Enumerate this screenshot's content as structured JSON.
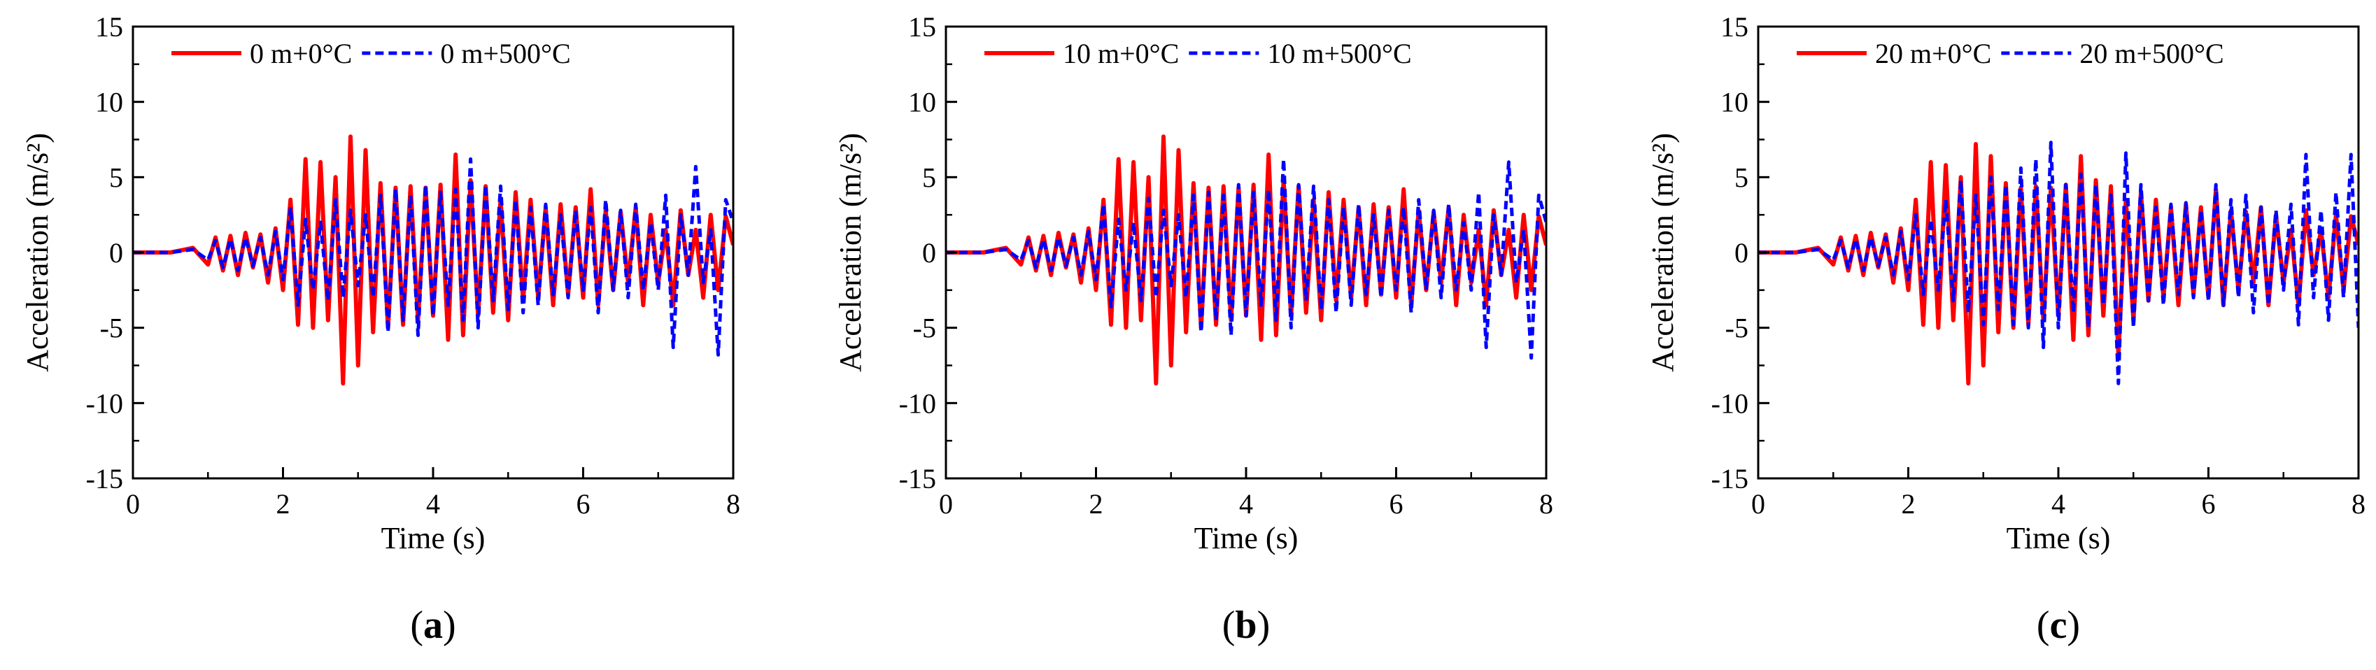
{
  "colors": {
    "series_0C": "#ff0000",
    "series_500C": "#0000ff",
    "axis": "#000000"
  },
  "chart_data": [
    {
      "type": "line",
      "panel_label": "(a)",
      "xlabel": "Time (s)",
      "ylabel": "Acceleration (m/s²)",
      "xlim": [
        0,
        8
      ],
      "ylim": [
        -15,
        15
      ],
      "xticks": [
        0,
        2,
        4,
        6,
        8
      ],
      "yticks": [
        -15,
        -10,
        -5,
        0,
        5,
        10,
        15
      ],
      "legend_position": "top",
      "series": [
        {
          "name": "0 m+0°C",
          "color": "#ff0000",
          "style": "solid",
          "x": [
            0,
            0.5,
            0.8,
            1.0,
            1.1,
            1.2,
            1.3,
            1.4,
            1.5,
            1.6,
            1.7,
            1.8,
            1.9,
            2.0,
            2.1,
            2.2,
            2.3,
            2.4,
            2.5,
            2.6,
            2.7,
            2.8,
            2.9,
            3.0,
            3.1,
            3.2,
            3.3,
            3.4,
            3.5,
            3.6,
            3.7,
            3.8,
            3.9,
            4.0,
            4.1,
            4.2,
            4.3,
            4.4,
            4.5,
            4.6,
            4.7,
            4.8,
            4.9,
            5.0,
            5.1,
            5.2,
            5.3,
            5.4,
            5.5,
            5.6,
            5.7,
            5.8,
            5.9,
            6.0,
            6.1,
            6.2,
            6.3,
            6.4,
            6.5,
            6.6,
            6.7,
            6.8,
            6.9,
            7.0,
            7.1,
            7.2,
            7.3,
            7.4,
            7.5,
            7.6,
            7.7,
            7.8,
            7.9,
            8.0
          ],
          "y": [
            0,
            0,
            0.3,
            -0.8,
            1.0,
            -1.2,
            1.1,
            -1.5,
            1.3,
            -1.0,
            1.2,
            -2.0,
            1.6,
            -2.5,
            3.5,
            -4.8,
            6.2,
            -5.0,
            6.0,
            -4.5,
            5.0,
            -8.7,
            7.7,
            -7.5,
            6.8,
            -5.3,
            4.6,
            -5.0,
            4.3,
            -4.8,
            4.4,
            -4.5,
            4.3,
            -4.2,
            4.5,
            -5.8,
            6.5,
            -5.5,
            4.8,
            -4.2,
            4.4,
            -4.0,
            3.5,
            -4.5,
            4.0,
            -3.2,
            3.5,
            -3.0,
            3.0,
            -3.5,
            3.2,
            -2.8,
            3.0,
            -3.0,
            4.2,
            -3.5,
            2.8,
            -2.5,
            2.7,
            -2.0,
            3.0,
            -3.5,
            2.5,
            -2.0,
            1.5,
            -3.5,
            2.8,
            -1.5,
            1.5,
            -3.0,
            2.5,
            -2.5,
            2.4,
            0.5
          ]
        },
        {
          "name": "0 m+500°C",
          "color": "#0000ff",
          "style": "dashed",
          "x": [
            0,
            0.5,
            0.8,
            1.0,
            1.1,
            1.2,
            1.3,
            1.4,
            1.5,
            1.6,
            1.7,
            1.8,
            1.9,
            2.0,
            2.1,
            2.2,
            2.3,
            2.4,
            2.5,
            2.6,
            2.7,
            2.8,
            2.9,
            3.0,
            3.1,
            3.2,
            3.3,
            3.4,
            3.5,
            3.6,
            3.7,
            3.8,
            3.9,
            4.0,
            4.1,
            4.2,
            4.3,
            4.4,
            4.5,
            4.6,
            4.7,
            4.8,
            4.9,
            5.0,
            5.1,
            5.2,
            5.3,
            5.4,
            5.5,
            5.6,
            5.7,
            5.8,
            5.9,
            6.0,
            6.1,
            6.2,
            6.3,
            6.4,
            6.5,
            6.6,
            6.7,
            6.8,
            6.9,
            7.0,
            7.1,
            7.2,
            7.3,
            7.4,
            7.5,
            7.6,
            7.7,
            7.8,
            7.9,
            8.0
          ],
          "y": [
            0,
            0,
            0.2,
            -0.5,
            0.8,
            -1.0,
            0.9,
            -1.2,
            1.0,
            -0.9,
            1.0,
            -1.5,
            1.4,
            -1.8,
            3.0,
            -3.5,
            2.2,
            -2.5,
            2.0,
            -3.2,
            3.5,
            -3.0,
            2.8,
            -2.2,
            2.5,
            -3.0,
            3.8,
            -5.3,
            4.2,
            -4.5,
            3.8,
            -5.5,
            4.5,
            -4.2,
            4.0,
            -3.5,
            4.2,
            -4.5,
            6.2,
            -5.0,
            4.5,
            -3.2,
            4.4,
            -3.8,
            3.5,
            -4.0,
            3.0,
            -3.5,
            3.2,
            -2.8,
            2.5,
            -3.0,
            2.8,
            -2.5,
            3.0,
            -4.0,
            3.5,
            -2.5,
            2.8,
            -3.0,
            3.2,
            -2.5,
            2.0,
            -2.5,
            3.8,
            -6.3,
            2.5,
            -1.5,
            5.7,
            -2.0,
            1.5,
            -6.8,
            3.5,
            2.0
          ]
        }
      ]
    },
    {
      "type": "line",
      "panel_label": "(b)",
      "xlabel": "Time (s)",
      "ylabel": "Acceleration (m/s²)",
      "xlim": [
        0,
        8
      ],
      "ylim": [
        -15,
        15
      ],
      "xticks": [
        0,
        2,
        4,
        6,
        8
      ],
      "yticks": [
        -15,
        -10,
        -5,
        0,
        5,
        10,
        15
      ],
      "legend_position": "top",
      "series": [
        {
          "name": "10 m+0°C",
          "color": "#ff0000",
          "style": "solid",
          "x": [
            0,
            0.5,
            0.8,
            1.0,
            1.1,
            1.2,
            1.3,
            1.4,
            1.5,
            1.6,
            1.7,
            1.8,
            1.9,
            2.0,
            2.1,
            2.2,
            2.3,
            2.4,
            2.5,
            2.6,
            2.7,
            2.8,
            2.9,
            3.0,
            3.1,
            3.2,
            3.3,
            3.4,
            3.5,
            3.6,
            3.7,
            3.8,
            3.9,
            4.0,
            4.1,
            4.2,
            4.3,
            4.4,
            4.5,
            4.6,
            4.7,
            4.8,
            4.9,
            5.0,
            5.1,
            5.2,
            5.3,
            5.4,
            5.5,
            5.6,
            5.7,
            5.8,
            5.9,
            6.0,
            6.1,
            6.2,
            6.3,
            6.4,
            6.5,
            6.6,
            6.7,
            6.8,
            6.9,
            7.0,
            7.1,
            7.2,
            7.3,
            7.4,
            7.5,
            7.6,
            7.7,
            7.8,
            7.9,
            8.0
          ],
          "y": [
            0,
            0,
            0.3,
            -0.8,
            1.0,
            -1.2,
            1.1,
            -1.5,
            1.3,
            -1.0,
            1.2,
            -2.0,
            1.6,
            -2.5,
            3.5,
            -4.8,
            6.2,
            -5.0,
            6.0,
            -4.5,
            5.0,
            -8.7,
            7.7,
            -7.5,
            6.8,
            -5.3,
            4.6,
            -5.0,
            4.3,
            -4.8,
            4.4,
            -4.5,
            4.3,
            -4.2,
            4.5,
            -5.8,
            6.5,
            -5.5,
            4.8,
            -4.2,
            4.4,
            -4.0,
            3.5,
            -4.5,
            4.0,
            -3.2,
            3.5,
            -3.0,
            3.0,
            -3.5,
            3.2,
            -2.8,
            3.0,
            -3.0,
            4.2,
            -3.5,
            2.8,
            -2.5,
            2.7,
            -2.0,
            3.0,
            -3.5,
            2.5,
            -2.0,
            1.5,
            -3.5,
            2.8,
            -1.5,
            1.5,
            -3.0,
            2.5,
            -2.5,
            2.4,
            0.5
          ]
        },
        {
          "name": "10 m+500°C",
          "color": "#0000ff",
          "style": "dashed",
          "x": [
            0,
            0.5,
            0.8,
            1.0,
            1.1,
            1.2,
            1.3,
            1.4,
            1.5,
            1.6,
            1.7,
            1.8,
            1.9,
            2.0,
            2.1,
            2.2,
            2.3,
            2.4,
            2.5,
            2.6,
            2.7,
            2.8,
            2.9,
            3.0,
            3.1,
            3.2,
            3.3,
            3.4,
            3.5,
            3.6,
            3.7,
            3.8,
            3.9,
            4.0,
            4.1,
            4.2,
            4.3,
            4.4,
            4.5,
            4.6,
            4.7,
            4.8,
            4.9,
            5.0,
            5.1,
            5.2,
            5.3,
            5.4,
            5.5,
            5.6,
            5.7,
            5.8,
            5.9,
            6.0,
            6.1,
            6.2,
            6.3,
            6.4,
            6.5,
            6.6,
            6.7,
            6.8,
            6.9,
            7.0,
            7.1,
            7.2,
            7.3,
            7.4,
            7.5,
            7.6,
            7.7,
            7.8,
            7.9,
            8.0
          ],
          "y": [
            0,
            0,
            0.2,
            -0.5,
            0.8,
            -1.0,
            0.9,
            -1.2,
            1.0,
            -0.9,
            1.0,
            -1.5,
            1.4,
            -1.8,
            3.2,
            -3.6,
            2.2,
            -2.5,
            2.0,
            -3.2,
            3.6,
            -3.0,
            2.8,
            -2.2,
            2.5,
            -3.0,
            3.8,
            -5.3,
            4.0,
            -4.5,
            3.8,
            -5.5,
            4.5,
            -4.2,
            4.0,
            -3.5,
            4.2,
            -4.5,
            6.2,
            -5.0,
            4.5,
            -3.2,
            4.4,
            -3.8,
            3.5,
            -4.0,
            3.0,
            -3.5,
            3.2,
            -2.8,
            2.5,
            -3.0,
            2.8,
            -2.5,
            3.0,
            -4.0,
            3.5,
            -2.5,
            2.8,
            -3.0,
            3.2,
            -2.5,
            2.0,
            -2.5,
            4.0,
            -6.3,
            2.5,
            -1.5,
            6.0,
            -2.0,
            1.5,
            -7.0,
            3.8,
            2.0
          ]
        }
      ]
    },
    {
      "type": "line",
      "panel_label": "(c)",
      "xlabel": "Time (s)",
      "ylabel": "Acceleration (m/s²)",
      "xlim": [
        0,
        8
      ],
      "ylim": [
        -15,
        15
      ],
      "xticks": [
        0,
        2,
        4,
        6,
        8
      ],
      "yticks": [
        -15,
        -10,
        -5,
        0,
        5,
        10,
        15
      ],
      "legend_position": "top",
      "series": [
        {
          "name": "20 m+0°C",
          "color": "#ff0000",
          "style": "solid",
          "x": [
            0,
            0.5,
            0.8,
            1.0,
            1.1,
            1.2,
            1.3,
            1.4,
            1.5,
            1.6,
            1.7,
            1.8,
            1.9,
            2.0,
            2.1,
            2.2,
            2.3,
            2.4,
            2.5,
            2.6,
            2.7,
            2.8,
            2.9,
            3.0,
            3.1,
            3.2,
            3.3,
            3.4,
            3.5,
            3.6,
            3.7,
            3.8,
            3.9,
            4.0,
            4.1,
            4.2,
            4.3,
            4.4,
            4.5,
            4.6,
            4.7,
            4.8,
            4.9,
            5.0,
            5.1,
            5.2,
            5.3,
            5.4,
            5.5,
            5.6,
            5.7,
            5.8,
            5.9,
            6.0,
            6.1,
            6.2,
            6.3,
            6.4,
            6.5,
            6.6,
            6.7,
            6.8,
            6.9,
            7.0,
            7.1,
            7.2,
            7.3,
            7.4,
            7.5,
            7.6,
            7.7,
            7.8,
            7.9,
            8.0
          ],
          "y": [
            0,
            0,
            0.3,
            -0.8,
            1.0,
            -1.2,
            1.1,
            -1.5,
            1.3,
            -1.0,
            1.2,
            -2.0,
            1.6,
            -2.5,
            3.5,
            -4.8,
            6.0,
            -5.0,
            5.8,
            -4.5,
            5.0,
            -8.7,
            7.2,
            -7.5,
            6.4,
            -5.3,
            4.6,
            -5.0,
            4.3,
            -4.8,
            4.4,
            -4.5,
            4.3,
            -4.2,
            4.5,
            -5.8,
            6.4,
            -5.5,
            4.8,
            -4.2,
            4.4,
            -6.8,
            3.5,
            -4.5,
            4.0,
            -3.2,
            3.5,
            -3.0,
            3.0,
            -3.5,
            3.2,
            -2.8,
            3.0,
            -3.0,
            4.2,
            -3.5,
            2.8,
            -2.5,
            2.7,
            -2.0,
            3.0,
            -3.5,
            2.5,
            -2.0,
            1.5,
            -3.5,
            2.8,
            -1.5,
            1.5,
            -3.0,
            2.5,
            -2.5,
            2.4,
            0.5
          ]
        },
        {
          "name": "20 m+500°C",
          "color": "#0000ff",
          "style": "dashed",
          "x": [
            0,
            0.5,
            0.8,
            1.0,
            1.1,
            1.2,
            1.3,
            1.4,
            1.5,
            1.6,
            1.7,
            1.8,
            1.9,
            2.0,
            2.1,
            2.2,
            2.3,
            2.4,
            2.5,
            2.6,
            2.7,
            2.8,
            2.9,
            3.0,
            3.1,
            3.2,
            3.3,
            3.4,
            3.5,
            3.6,
            3.7,
            3.8,
            3.9,
            4.0,
            4.1,
            4.2,
            4.3,
            4.4,
            4.5,
            4.6,
            4.7,
            4.8,
            4.9,
            5.0,
            5.1,
            5.2,
            5.3,
            5.4,
            5.5,
            5.6,
            5.7,
            5.8,
            5.9,
            6.0,
            6.1,
            6.2,
            6.3,
            6.4,
            6.5,
            6.6,
            6.7,
            6.8,
            6.9,
            7.0,
            7.1,
            7.2,
            7.3,
            7.4,
            7.5,
            7.6,
            7.7,
            7.8,
            7.9,
            8.0
          ],
          "y": [
            0,
            0,
            0.2,
            -0.5,
            0.8,
            -1.0,
            0.9,
            -1.2,
            1.0,
            -0.9,
            1.0,
            -1.5,
            1.4,
            -1.8,
            2.5,
            -2.8,
            2.2,
            -2.5,
            3.5,
            -3.2,
            4.8,
            -4.0,
            3.8,
            -4.8,
            5.0,
            -3.8,
            4.5,
            -4.8,
            5.6,
            -5.0,
            6.2,
            -6.3,
            7.3,
            -5.0,
            4.5,
            -4.0,
            5.2,
            -5.0,
            4.5,
            -3.5,
            3.8,
            -8.7,
            6.6,
            -5.0,
            4.5,
            -3.2,
            3.0,
            -3.5,
            3.2,
            -2.8,
            3.3,
            -3.0,
            2.8,
            -3.2,
            4.5,
            -3.5,
            3.5,
            -3.0,
            3.8,
            -4.0,
            3.0,
            -3.5,
            2.8,
            -2.5,
            3.2,
            -4.8,
            6.5,
            -3.0,
            2.8,
            -4.5,
            4.0,
            -3.0,
            6.5,
            -5.0
          ]
        }
      ]
    }
  ]
}
